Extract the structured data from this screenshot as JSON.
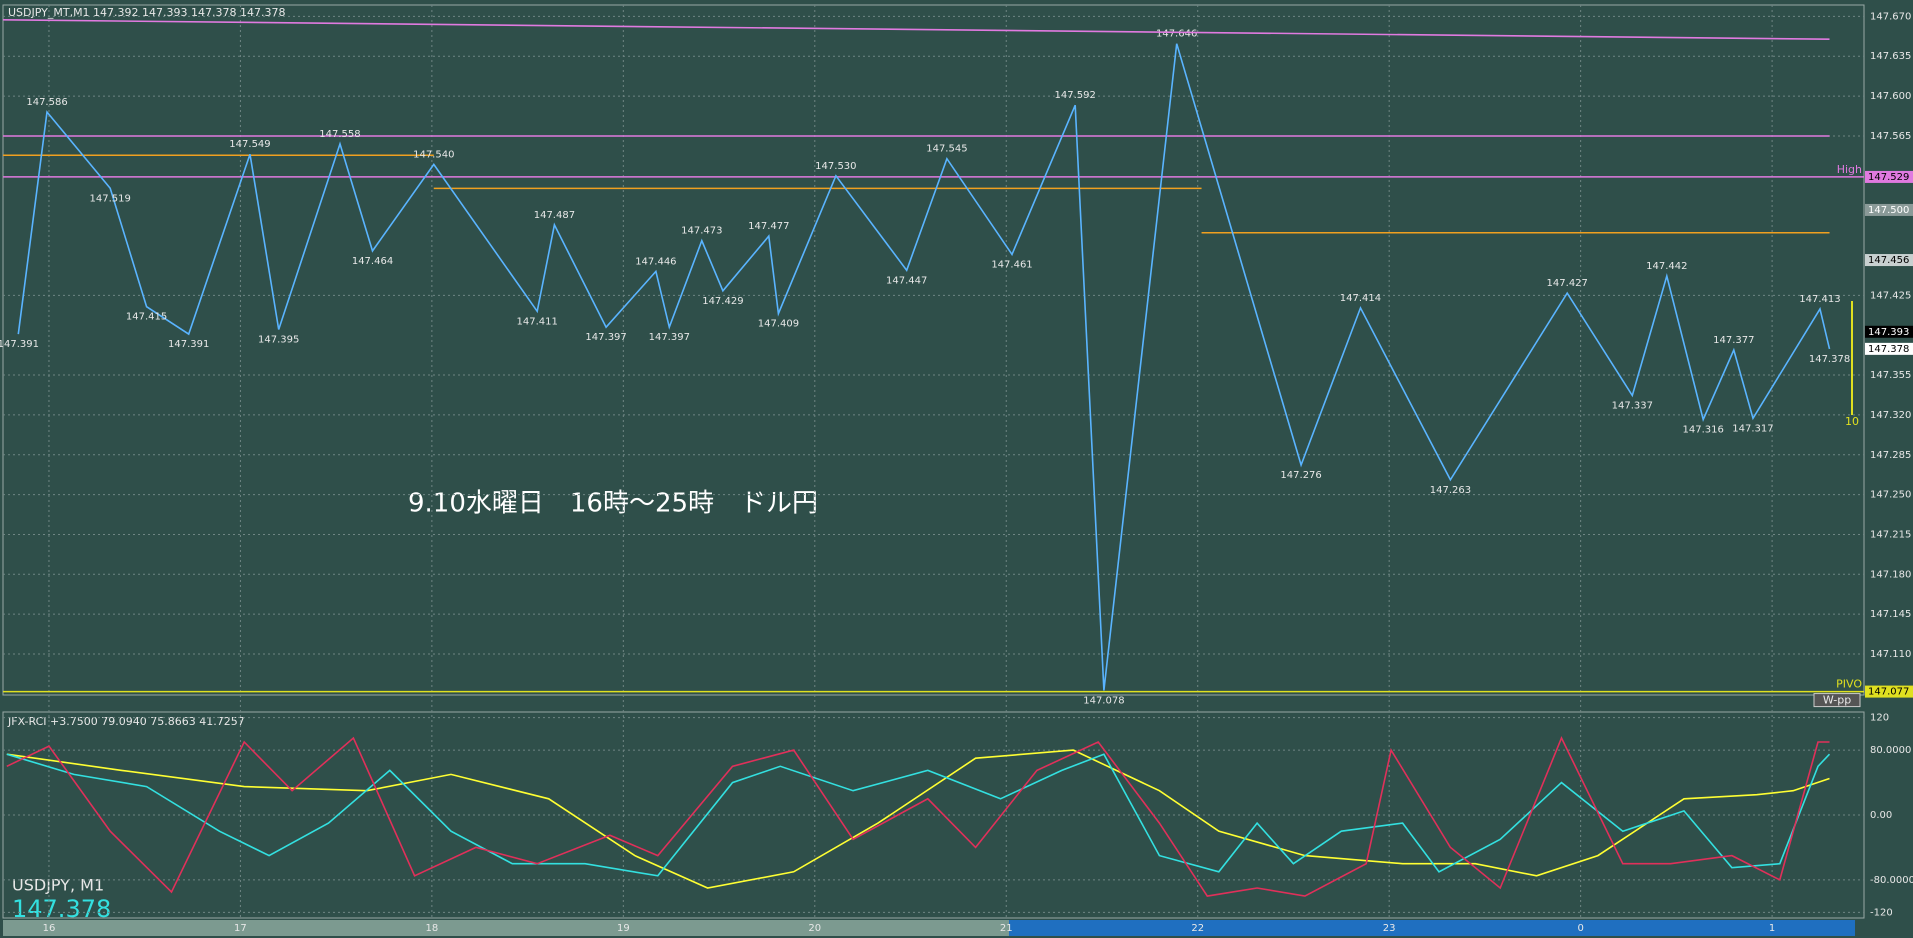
{
  "chart_data": [
    {
      "type": "line",
      "title": "USDJPY_MT,M1  147.392 147.393 147.378 147.378",
      "annotation": "9.10水曜日　16時～25時　ドル円",
      "symbol": "USDJPY, M1",
      "last_price": 147.378,
      "range_label": "10",
      "xlim": [
        -0.24,
        9.48
      ],
      "xticks": [
        {
          "value": 0,
          "label": "16"
        },
        {
          "value": 1,
          "label": "17"
        },
        {
          "value": 2,
          "label": "18"
        },
        {
          "value": 3,
          "label": "19"
        },
        {
          "value": 4,
          "label": "20"
        },
        {
          "value": 5,
          "label": "21"
        },
        {
          "value": 6,
          "label": "22"
        },
        {
          "value": 7,
          "label": "23"
        },
        {
          "value": 8,
          "label": "0"
        },
        {
          "value": 9,
          "label": "1"
        }
      ],
      "ylim": [
        147.074,
        147.68
      ],
      "yticks": [
        {
          "value": 147.67,
          "label": "147.670"
        },
        147.635,
        {
          "value": 147.6,
          "label": "147.600"
        },
        147.565,
        147.425,
        147.355,
        {
          "value": 147.32,
          "label": "147.320"
        },
        147.285,
        {
          "value": 147.25,
          "label": "147.250"
        },
        147.215,
        {
          "value": 147.18,
          "label": "147.180"
        },
        147.145,
        {
          "value": 147.11,
          "label": "147.110"
        }
      ],
      "grid": true,
      "series": [
        {
          "color": "#5ab4ff",
          "x": [
            -0.16,
            -0.01,
            0.32,
            0.51,
            0.73,
            1.05,
            1.2,
            1.52,
            1.69,
            2.01,
            2.55,
            2.64,
            2.91,
            3.17,
            3.24,
            3.41,
            3.52,
            3.76,
            3.81,
            4.11,
            4.48,
            4.69,
            5.03,
            5.36,
            5.51,
            5.89,
            6.54,
            6.85,
            7.32,
            7.93,
            8.27,
            8.45,
            8.64,
            8.8,
            8.9,
            9.25,
            9.3
          ],
          "values": [
            147.391,
            147.586,
            147.519,
            147.415,
            147.391,
            147.549,
            147.395,
            147.558,
            147.464,
            147.54,
            147.411,
            147.487,
            147.397,
            147.446,
            147.397,
            147.473,
            147.429,
            147.477,
            147.409,
            147.53,
            147.447,
            147.545,
            147.461,
            147.592,
            147.078,
            147.646,
            147.276,
            147.414,
            147.263,
            147.427,
            147.337,
            147.442,
            147.316,
            147.377,
            147.317,
            147.413,
            147.378
          ],
          "value_labels": [
            "147.391",
            "147.586",
            "147.519",
            "147.415",
            "147.391",
            "147.549",
            "147.395",
            "147.558",
            "147.464",
            "147.540",
            "147.411",
            "147.487",
            "147.397",
            "147.446",
            "147.397",
            "147.473",
            "147.429",
            "147.477",
            "147.409",
            "147.530",
            "147.447",
            "147.545",
            "147.461",
            "147.592",
            "147.078",
            "147.646",
            "147.276",
            "147.414",
            "147.263",
            "147.427",
            "147.337",
            "147.442",
            "147.316",
            "147.377",
            "147.317",
            "147.413",
            "147.378"
          ]
        },
        {
          "color": "#e07ae0",
          "x": [
            -0.24,
            9.3
          ],
          "values": [
            147.667,
            147.65
          ]
        }
      ],
      "levels": [
        {
          "value": 147.565,
          "color": "#e07ae0",
          "from": -0.24,
          "to": 9.3
        },
        {
          "value": 147.529,
          "color": "#e07ae0",
          "from": -0.24,
          "to": 9.48,
          "label": "High",
          "box": true
        },
        {
          "value": 147.548,
          "color": "#f0a020",
          "from": -0.24,
          "to": 2.01
        },
        {
          "value": 147.519,
          "color": "#f0a020",
          "from": 2.01,
          "to": 6.02
        },
        {
          "value": 147.48,
          "color": "#f0a020",
          "from": 6.02,
          "to": 9.3
        },
        {
          "value": 147.077,
          "color": "#e0e020",
          "from": -0.24,
          "to": 9.48,
          "label": "PIVO",
          "tag": "W-pp",
          "box": true
        }
      ],
      "price_boxes": [
        {
          "value": 147.5,
          "label": "147.500",
          "color": "#8a9a98",
          "text_color": "#ffffff"
        },
        {
          "value": 147.456,
          "color": "#c8d0d0",
          "text_color": "#000000"
        },
        {
          "value": 147.393,
          "color": "#000000",
          "text_color": "#ffffff"
        },
        {
          "value": 147.378,
          "color": "#ffffff",
          "text_color": "#000000"
        }
      ]
    },
    {
      "type": "line",
      "title": "JFX-RCI +3.7500 79.0940 75.8663 41.7257",
      "xlim": [
        -0.24,
        9.48
      ],
      "ylim": [
        -127,
        127
      ],
      "yticks": [
        120,
        {
          "value": 80,
          "label": "80.0000"
        },
        {
          "value": 0,
          "label": "0.00"
        },
        {
          "value": -80,
          "label": "-80.0000"
        },
        -120
      ],
      "grid": true,
      "series": [
        {
          "color": "#ffff33",
          "x": [
            -0.22,
            0.38,
            1.02,
            1.66,
            2.1,
            2.61,
            3.06,
            3.44,
            3.89,
            4.33,
            4.84,
            5.35,
            5.8,
            6.11,
            6.56,
            7.07,
            7.45,
            7.77,
            8.09,
            8.54,
            8.92,
            9.11,
            9.3
          ],
          "values": [
            75,
            55,
            35,
            30,
            50,
            20,
            -50,
            -90,
            -70,
            -10,
            70,
            80,
            30,
            -20,
            -50,
            -60,
            -60,
            -75,
            -50,
            20,
            25,
            30,
            45
          ]
        },
        {
          "color": "#33e0e0",
          "x": [
            -0.22,
            0.13,
            0.51,
            0.89,
            1.15,
            1.46,
            1.78,
            2.1,
            2.42,
            2.8,
            3.18,
            3.57,
            3.82,
            4.2,
            4.59,
            4.97,
            5.29,
            5.51,
            5.8,
            6.11,
            6.31,
            6.5,
            6.75,
            7.07,
            7.26,
            7.58,
            7.9,
            8.22,
            8.54,
            8.79,
            9.04,
            9.24,
            9.3
          ],
          "values": [
            75,
            50,
            35,
            -20,
            -50,
            -10,
            55,
            -20,
            -60,
            -60,
            -75,
            40,
            60,
            30,
            55,
            20,
            55,
            75,
            -50,
            -70,
            -10,
            -60,
            -20,
            -10,
            -70,
            -30,
            40,
            -20,
            5,
            -65,
            -60,
            60,
            75
          ]
        },
        {
          "color": "#e0305a",
          "x": [
            -0.22,
            0,
            0.32,
            0.64,
            1.02,
            1.27,
            1.59,
            1.91,
            2.23,
            2.55,
            2.93,
            3.18,
            3.57,
            3.89,
            4.2,
            4.59,
            4.84,
            5.16,
            5.48,
            5.8,
            6.05,
            6.31,
            6.56,
            6.88,
            7.01,
            7.32,
            7.58,
            7.9,
            8.22,
            8.47,
            8.79,
            9.04,
            9.24,
            9.3
          ],
          "values": [
            60,
            85,
            -20,
            -95,
            90,
            30,
            95,
            -75,
            -40,
            -60,
            -25,
            -50,
            60,
            80,
            -30,
            20,
            -40,
            55,
            90,
            -10,
            -100,
            -90,
            -100,
            -60,
            80,
            -40,
            -90,
            95,
            -60,
            -60,
            -50,
            -80,
            90,
            90
          ]
        }
      ]
    }
  ]
}
